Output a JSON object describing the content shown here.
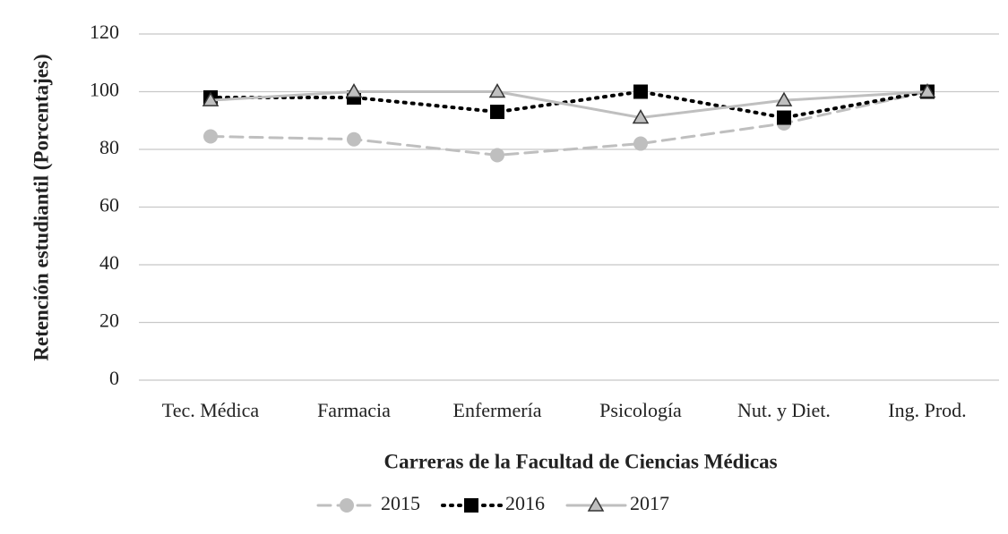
{
  "chart_data": {
    "type": "line",
    "xlabel": "Carreras de la Facultad de Ciencias Médicas",
    "ylabel": "Retención estudiantil (Porcentajes)",
    "categories": [
      "Tec. Médica",
      "Farmacia",
      "Enfermería",
      "Psicología",
      "Nut. y Diet.",
      "Ing. Prod."
    ],
    "series": [
      {
        "name": "2015",
        "color": "#bfbfbf",
        "line_style": "dashed",
        "marker": "circle",
        "values": [
          84.5,
          83.5,
          78,
          82,
          89,
          100
        ]
      },
      {
        "name": "2016",
        "color": "#000000",
        "line_style": "dotted",
        "marker": "square",
        "values": [
          98,
          98,
          93,
          100,
          91,
          100
        ]
      },
      {
        "name": "2017",
        "color": "#bfbfbf",
        "line_style": "solid",
        "marker": "triangle",
        "values": [
          97,
          100,
          100,
          91,
          97,
          100
        ]
      }
    ],
    "ylim": [
      0,
      120
    ],
    "yticks": [
      0,
      20,
      40,
      60,
      80,
      100,
      120
    ],
    "grid": true,
    "legend": "bottom"
  }
}
